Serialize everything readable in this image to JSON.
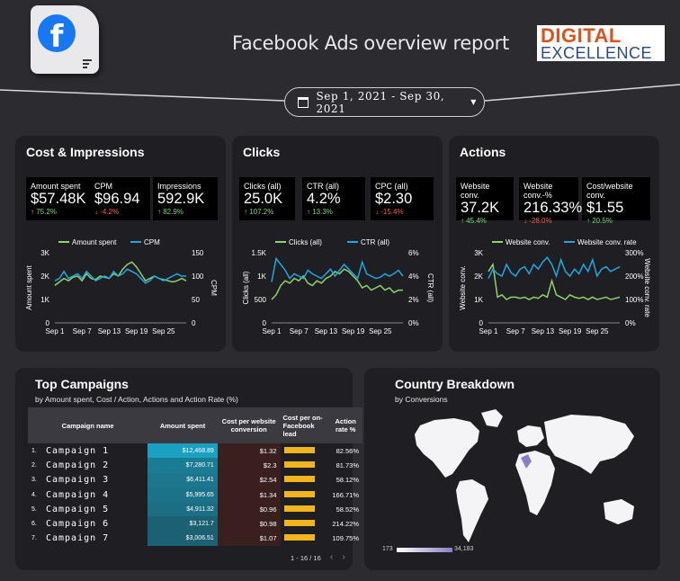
{
  "header": {
    "title": "Facebook Ads overview report",
    "brand_line1": "DIGITAL",
    "brand_line2": "EXCELLENCE",
    "date_range": "Sep 1, 2021 - Sep 30, 2021",
    "icons": [
      "facebook-logo-icon",
      "calendar-icon",
      "caret-down-icon"
    ]
  },
  "panels": {
    "cost": {
      "title": "Cost & Impressions",
      "kpis": [
        {
          "label": "Amount spent",
          "value": "$57.48K",
          "delta": "↑ 75.2%",
          "dir": "up"
        },
        {
          "label": "CPM",
          "value": "$96.94",
          "delta": "↓ -4.2%",
          "dir": "down"
        },
        {
          "label": "Impressions",
          "value": "592.9K",
          "delta": "↑ 82.9%",
          "dir": "up"
        }
      ]
    },
    "clicks": {
      "title": "Clicks",
      "kpis": [
        {
          "label": "Clicks (all)",
          "value": "25.0K",
          "delta": "↑ 107.2%",
          "dir": "up"
        },
        {
          "label": "CTR (all)",
          "value": "4.2%",
          "delta": "↑ 13.3%",
          "dir": "up"
        },
        {
          "label": "CPC (all)",
          "value": "$2.30",
          "delta": "↓ -15.4%",
          "dir": "down"
        }
      ]
    },
    "actions": {
      "title": "Actions",
      "kpis": [
        {
          "label": "Website conv.",
          "value": "37.2K",
          "delta": "↑ 45.4%",
          "dir": "up"
        },
        {
          "label": "Website conv.-%",
          "value": "216.33%",
          "delta": "↓ -28.0%",
          "dir": "down"
        },
        {
          "label": "Cost/website conv.",
          "value": "$1.55",
          "delta": "↑ 20.5%",
          "dir": "up"
        }
      ]
    }
  },
  "colors": {
    "series_a": "#8fd16a",
    "series_b": "#1fa8e0",
    "bar_amount": "#1aa0c0",
    "bar_lead": "#f2b51d"
  },
  "chart_data": [
    {
      "type": "line",
      "x_ticks": [
        "Sep 1",
        "Sep 7",
        "Sep 13",
        "Sep 19",
        "Sep 25"
      ],
      "ylabel": "Amount spent",
      "y2label": "CPM",
      "y_ticks": [
        "0",
        "1K",
        "2K",
        "3K"
      ],
      "ylim": [
        0,
        3000
      ],
      "y2_ticks": [
        "0",
        "50",
        "100",
        "150"
      ],
      "y2lim": [
        0,
        150
      ],
      "series": [
        {
          "name": "Amount spent",
          "axis": "left",
          "values": [
            1600,
            1750,
            1900,
            1800,
            1950,
            2000,
            1800,
            2100,
            1900,
            1850,
            2000,
            1950,
            1900,
            2100,
            2000,
            2300,
            2500,
            2600,
            2400,
            2100,
            1800,
            1900,
            2000,
            1900,
            1850,
            1800,
            1750,
            1800,
            1900,
            1800
          ]
        },
        {
          "name": "CPM",
          "axis": "right",
          "values": [
            90,
            95,
            110,
            95,
            100,
            105,
            95,
            110,
            100,
            90,
            95,
            100,
            95,
            110,
            100,
            105,
            115,
            110,
            105,
            95,
            85,
            90,
            100,
            95,
            90,
            95,
            100,
            105,
            100,
            100
          ]
        }
      ]
    },
    {
      "type": "line",
      "x_ticks": [
        "Sep 1",
        "Sep 7",
        "Sep 13",
        "Sep 19",
        "Sep 25"
      ],
      "ylabel": "Clicks (all)",
      "y2label": "CTR (all)",
      "y_ticks": [
        "0",
        "500",
        "1K",
        "1.5K"
      ],
      "ylim": [
        0,
        1500
      ],
      "y2_ticks": [
        "0%",
        "2%",
        "4%",
        "6%"
      ],
      "y2lim": [
        0,
        6
      ],
      "series": [
        {
          "name": "Clicks (all)",
          "axis": "left",
          "values": [
            500,
            600,
            800,
            900,
            850,
            950,
            900,
            1000,
            850,
            800,
            900,
            850,
            950,
            1000,
            1100,
            1050,
            1150,
            1100,
            1000,
            900,
            750,
            800,
            700,
            750,
            800,
            700,
            750,
            650,
            700,
            700
          ]
        },
        {
          "name": "CTR (all)",
          "axis": "right",
          "values": [
            3.5,
            5.5,
            5.0,
            4.5,
            3.8,
            4.2,
            4.0,
            3.8,
            4.5,
            4.2,
            4.0,
            3.8,
            4.2,
            4.6,
            4.0,
            4.5,
            5.0,
            4.6,
            4.2,
            3.8,
            5.2,
            4.2,
            4.0,
            3.8,
            3.9,
            4.2,
            4.0,
            4.2,
            4.5,
            4.0
          ]
        }
      ]
    },
    {
      "type": "line",
      "x_ticks": [
        "Sep 1",
        "Sep 7",
        "Sep 13",
        "Sep 19",
        "Sep 25"
      ],
      "ylabel": "Website conv.",
      "y2label": "Website conv. rate",
      "y_ticks": [
        "0",
        "1K",
        "2K",
        "3K"
      ],
      "ylim": [
        0,
        3000
      ],
      "y2_ticks": [
        "0%",
        "100%",
        "200%",
        "300%"
      ],
      "y2lim": [
        0,
        300
      ],
      "series": [
        {
          "name": "Website conv.",
          "axis": "left",
          "values": [
            2200,
            2500,
            1100,
            1200,
            1000,
            1100,
            1100,
            1050,
            1100,
            1000,
            1100,
            1050,
            1200,
            1100,
            1800,
            1200,
            1100,
            1000,
            1200,
            1100,
            1050,
            1100,
            1000,
            1100,
            1000,
            1050,
            1100,
            1000,
            1050,
            1100
          ]
        },
        {
          "name": "Website conv. rate",
          "axis": "right",
          "values": [
            190,
            230,
            210,
            200,
            250,
            215,
            200,
            230,
            240,
            210,
            250,
            230,
            260,
            280,
            250,
            200,
            270,
            220,
            200,
            230,
            210,
            250,
            220,
            270,
            200,
            230,
            240,
            220,
            230,
            240
          ]
        }
      ]
    },
    {
      "type": "table",
      "title": "Top Campaigns",
      "subtitle": "by  Amount spent, Cost / Action, Actions and Action Rate (%)",
      "columns": [
        "Campaign name",
        "Amount spent",
        "Cost per website conversion",
        "Cost per on-Facebook lead",
        "Action rate %"
      ],
      "rows": [
        {
          "idx": "1.",
          "name": "Campaign 1",
          "amount": "$12,468.89",
          "amount_value": 12468.89,
          "cpw": "$1.32",
          "rate": "82.56%"
        },
        {
          "idx": "2.",
          "name": "Campaign 2",
          "amount": "$7,280.71",
          "amount_value": 7280.71,
          "cpw": "$2.3",
          "rate": "81.73%"
        },
        {
          "idx": "3.",
          "name": "Campaign 3",
          "amount": "$6,411.41",
          "amount_value": 6411.41,
          "cpw": "$2.54",
          "rate": "58.12%"
        },
        {
          "idx": "4.",
          "name": "Campaign 4",
          "amount": "$5,995.65",
          "amount_value": 5995.65,
          "cpw": "$1.34",
          "rate": "166.71%"
        },
        {
          "idx": "5.",
          "name": "Campaign 5",
          "amount": "$4,911.32",
          "amount_value": 4911.32,
          "cpw": "$0.96",
          "rate": "58.52%"
        },
        {
          "idx": "6.",
          "name": "Campaign 6",
          "amount": "$3,121.7",
          "amount_value": 3121.7,
          "cpw": "$0.98",
          "rate": "214.22%"
        },
        {
          "idx": "7.",
          "name": "Campaign 7",
          "amount": "$3,006.51",
          "amount_value": 3006.51,
          "cpw": "$1.07",
          "rate": "109.75%"
        }
      ],
      "pager": "1 - 16 / 16"
    },
    {
      "type": "heatmap",
      "title": "Country Breakdown",
      "subtitle": "by Conversions",
      "legend_min": "173",
      "legend_max": "34,183"
    }
  ]
}
